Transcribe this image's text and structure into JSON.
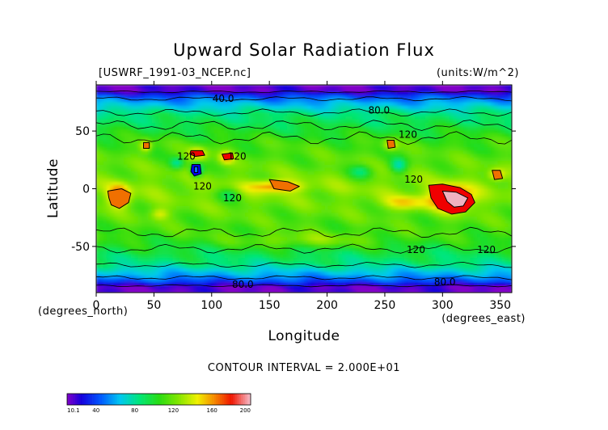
{
  "chart_data": {
    "type": "heatmap",
    "title": "Upward Solar Radiation Flux",
    "file_label": "[USWRF_1991-03_NCEP.nc]",
    "units_label": "(units:W/m^2)",
    "xlabel": "Longitude",
    "ylabel": "Latitude",
    "x_units": "(degrees_east)",
    "y_units": "(degrees_north)",
    "xlim": [
      0,
      360
    ],
    "ylim": [
      -90,
      90
    ],
    "x_ticks": [
      0,
      50,
      100,
      150,
      200,
      250,
      300,
      350
    ],
    "y_ticks": [
      -50,
      0,
      50
    ],
    "contour_interval_text": "CONTOUR INTERVAL = 2.000E+01",
    "contour_interval": 20,
    "value_range": [
      10.1,
      200
    ],
    "colorbar_ticks": [
      "10.1",
      "40",
      "80",
      "120",
      "160",
      "200"
    ],
    "colorbar_tick_values": [
      10.1,
      40,
      80,
      120,
      160,
      200
    ],
    "contour_labels": [
      {
        "text": "40.0",
        "lon": 110,
        "lat": 78
      },
      {
        "text": "80.0",
        "lon": 245,
        "lat": 68
      },
      {
        "text": "120",
        "lon": 270,
        "lat": 47
      },
      {
        "text": "120",
        "lon": 78,
        "lat": 28
      },
      {
        "text": "120",
        "lon": 122,
        "lat": 28
      },
      {
        "text": "120",
        "lon": 92,
        "lat": 2
      },
      {
        "text": "120",
        "lon": 118,
        "lat": -8
      },
      {
        "text": "120",
        "lon": 275,
        "lat": 8
      },
      {
        "text": "120",
        "lon": 277,
        "lat": -53
      },
      {
        "text": "120",
        "lon": 338,
        "lat": -53
      },
      {
        "text": "80.0",
        "lon": 127,
        "lat": -83
      },
      {
        "text": "80.0",
        "lon": 302,
        "lat": -81
      }
    ],
    "colors": {
      "violet": "#8a00c8",
      "blue": "#0000f0",
      "cyan": "#00c8f0",
      "green": "#00e060",
      "yellow": "#f0f000",
      "orange": "#f07000",
      "red": "#f00000",
      "pink": "#f0b0c0"
    }
  }
}
